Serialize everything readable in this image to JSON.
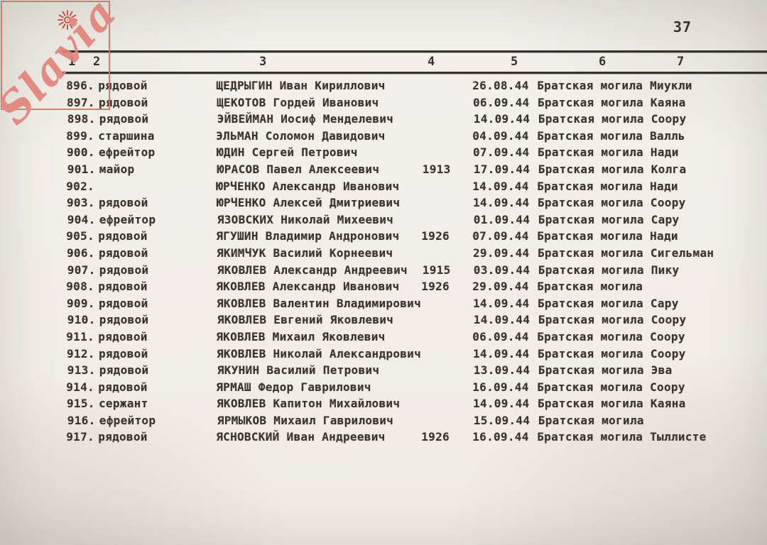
{
  "page": {
    "number": "37"
  },
  "watermark": {
    "text": "Slavia",
    "icon": "sunburst-icon",
    "border_color": "#dd6f69",
    "text_color": "#e2837d",
    "sun_color": "#c4403a"
  },
  "colors": {
    "paper": "#f2efe8",
    "ink": "#3a342b"
  },
  "table": {
    "columns": [
      "1",
      "2",
      "3",
      "4",
      "5",
      "6",
      "7"
    ],
    "rows": [
      {
        "num": "896.",
        "rank": "рядовой",
        "name": "ЩЕДРЫГИН Иван Кириллович",
        "year": "",
        "date": "26.08.44",
        "place": "Братская могила Миукли"
      },
      {
        "num": "897.",
        "rank": "рядовой",
        "name": "ЩЕКОТОВ Гордей Иванович",
        "year": "",
        "date": "06.09.44",
        "place": "Братская могила Каяна"
      },
      {
        "num": "898.",
        "rank": "рядовой",
        "name": "ЭЙВЕЙМАН Иосиф Менделевич",
        "year": "",
        "date": "14.09.44",
        "place": "Братская могила Соору"
      },
      {
        "num": "899.",
        "rank": "старшина",
        "name": "ЭЛЬМАН Соломон Давидович",
        "year": "",
        "date": "04.09.44",
        "place": "Братская могила Валль"
      },
      {
        "num": "900.",
        "rank": "ефрейтор",
        "name": "ЮДИН Сергей Петрович",
        "year": "",
        "date": "07.09.44",
        "place": "Братская могила Нади"
      },
      {
        "num": "901.",
        "rank": "майор",
        "name": "ЮРАСОВ Павел Алексеевич",
        "year": "1913",
        "date": "17.09.44",
        "place": "Братская могила Колга"
      },
      {
        "num": "902.",
        "rank": "",
        "name": "ЮРЧЕНКО Александр Иванович",
        "year": "",
        "date": "14.09.44",
        "place": "Братская могила Нади"
      },
      {
        "num": "903.",
        "rank": "рядовой",
        "name": "ЮРЧЕНКО Алексей Дмитриевич",
        "year": "",
        "date": "14.09.44",
        "place": "Братская могила Соору"
      },
      {
        "num": "904.",
        "rank": "ефрейтор",
        "name": "ЯЗОВСКИХ Николай Михеевич",
        "year": "",
        "date": "01.09.44",
        "place": "Братская могила Сару"
      },
      {
        "num": "905.",
        "rank": "рядовой",
        "name": "ЯГУШИН Владимир Андронович",
        "year": "1926",
        "date": "07.09.44",
        "place": "Братская могила Нади"
      },
      {
        "num": "906.",
        "rank": "рядовой",
        "name": "ЯКИМЧУК Василий Корнеевич",
        "year": "",
        "date": "29.09.44",
        "place": "Братская могила Сигельман"
      },
      {
        "num": "907.",
        "rank": "рядовой",
        "name": "ЯКОВЛЕВ Александр Андреевич",
        "year": "1915",
        "date": "03.09.44",
        "place": "Братская могила Пику"
      },
      {
        "num": "908.",
        "rank": "рядовой",
        "name": "ЯКОВЛЕВ Александр Иванович",
        "year": "1926",
        "date": "29.09.44",
        "place": "Братская могила"
      },
      {
        "num": "909.",
        "rank": "рядовой",
        "name": "ЯКОВЛЕВ Валентин Владимирович",
        "year": "",
        "date": "14.09.44",
        "place": "Братская могила Сару"
      },
      {
        "num": "910.",
        "rank": "рядовой",
        "name": "ЯКОВЛЕВ Евгений Яковлевич",
        "year": "",
        "date": "14.09.44",
        "place": "Братская могила Соору"
      },
      {
        "num": "911.",
        "rank": "рядовой",
        "name": "ЯКОВЛЕВ Михаил Яковлевич",
        "year": "",
        "date": "06.09.44",
        "place": "Братская могила Соору"
      },
      {
        "num": "912.",
        "rank": "рядовой",
        "name": "ЯКОВЛЕВ Николай Александрович",
        "year": "",
        "date": "14.09.44",
        "place": "Братская могила Соору"
      },
      {
        "num": "913.",
        "rank": "рядовой",
        "name": "ЯКУНИН Василий Петрович",
        "year": "",
        "date": "13.09.44",
        "place": "Братская могила Эва"
      },
      {
        "num": "914.",
        "rank": "рядовой",
        "name": "ЯРМАШ Федор Гаврилович",
        "year": "",
        "date": "16.09.44",
        "place": "Братская могила Соору"
      },
      {
        "num": "915.",
        "rank": "сержант",
        "name": "ЯКОВЛЕВ Капитон Михайлович",
        "year": "",
        "date": "14.09.44",
        "place": "Братская могила Каяна"
      },
      {
        "num": "916.",
        "rank": "ефрейтор",
        "name": "ЯРМЫКОВ Михаил Гаврилович",
        "year": "",
        "date": "15.09.44",
        "place": "Братская могила"
      },
      {
        "num": "917.",
        "rank": "рядовой",
        "name": "ЯСНОВСКИЙ Иван Андреевич",
        "year": "1926",
        "date": "16.09.44",
        "place": "Братская могила Тыллисте"
      }
    ]
  }
}
